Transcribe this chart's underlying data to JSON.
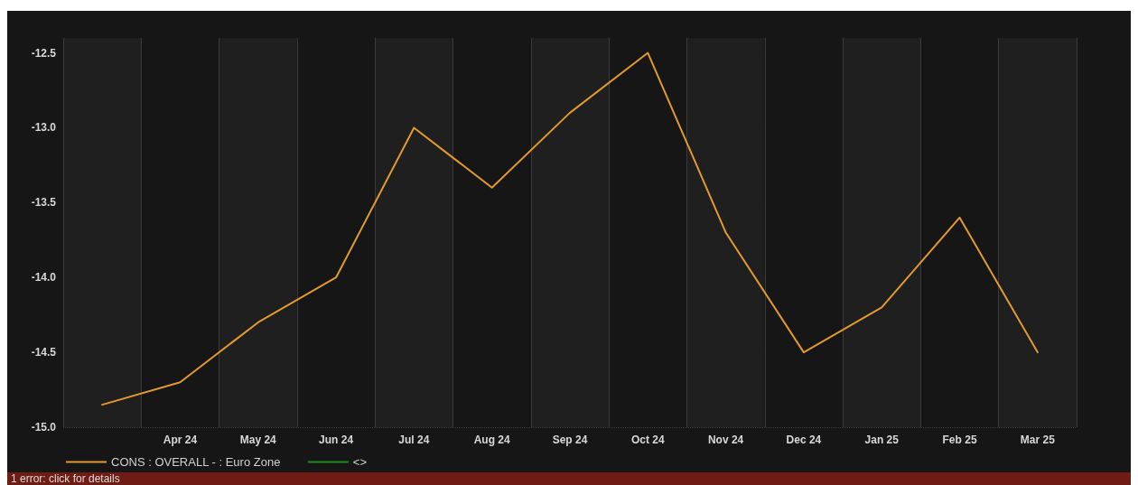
{
  "chart_data": {
    "type": "line",
    "categories": [
      null,
      "Apr 24",
      "May 24",
      "Jun 24",
      "Jul 24",
      "Aug 24",
      "Sep 24",
      "Oct 24",
      "Nov 24",
      "Dec 24",
      "Jan 25",
      "Feb 25",
      "Mar 25"
    ],
    "series": [
      {
        "name": "CONS : OVERALL - : Euro Zone",
        "color": "#e39a2c",
        "values": [
          -14.85,
          -14.7,
          -14.3,
          -14.0,
          -13.0,
          -13.4,
          -12.9,
          -12.5,
          -13.7,
          -14.5,
          -14.2,
          -13.6,
          -14.5
        ]
      },
      {
        "name": "<>",
        "color": "#1e8a1e",
        "values": [
          null,
          null,
          null,
          null,
          null,
          null,
          null,
          null,
          null,
          null,
          null,
          null,
          null
        ]
      }
    ],
    "ylim": [
      -15,
      -12.4
    ],
    "yticks": [
      {
        "value": -15,
        "label": "-15.0"
      },
      -14.5,
      {
        "value": -14,
        "label": "-14.0"
      },
      -13.5,
      {
        "value": -13,
        "label": "-13.0"
      },
      -12.5
    ],
    "grid": true,
    "legend": "bottom left",
    "marker": "none",
    "line_style": "solid",
    "annotations": [
      "1 error: click for details"
    ]
  }
}
